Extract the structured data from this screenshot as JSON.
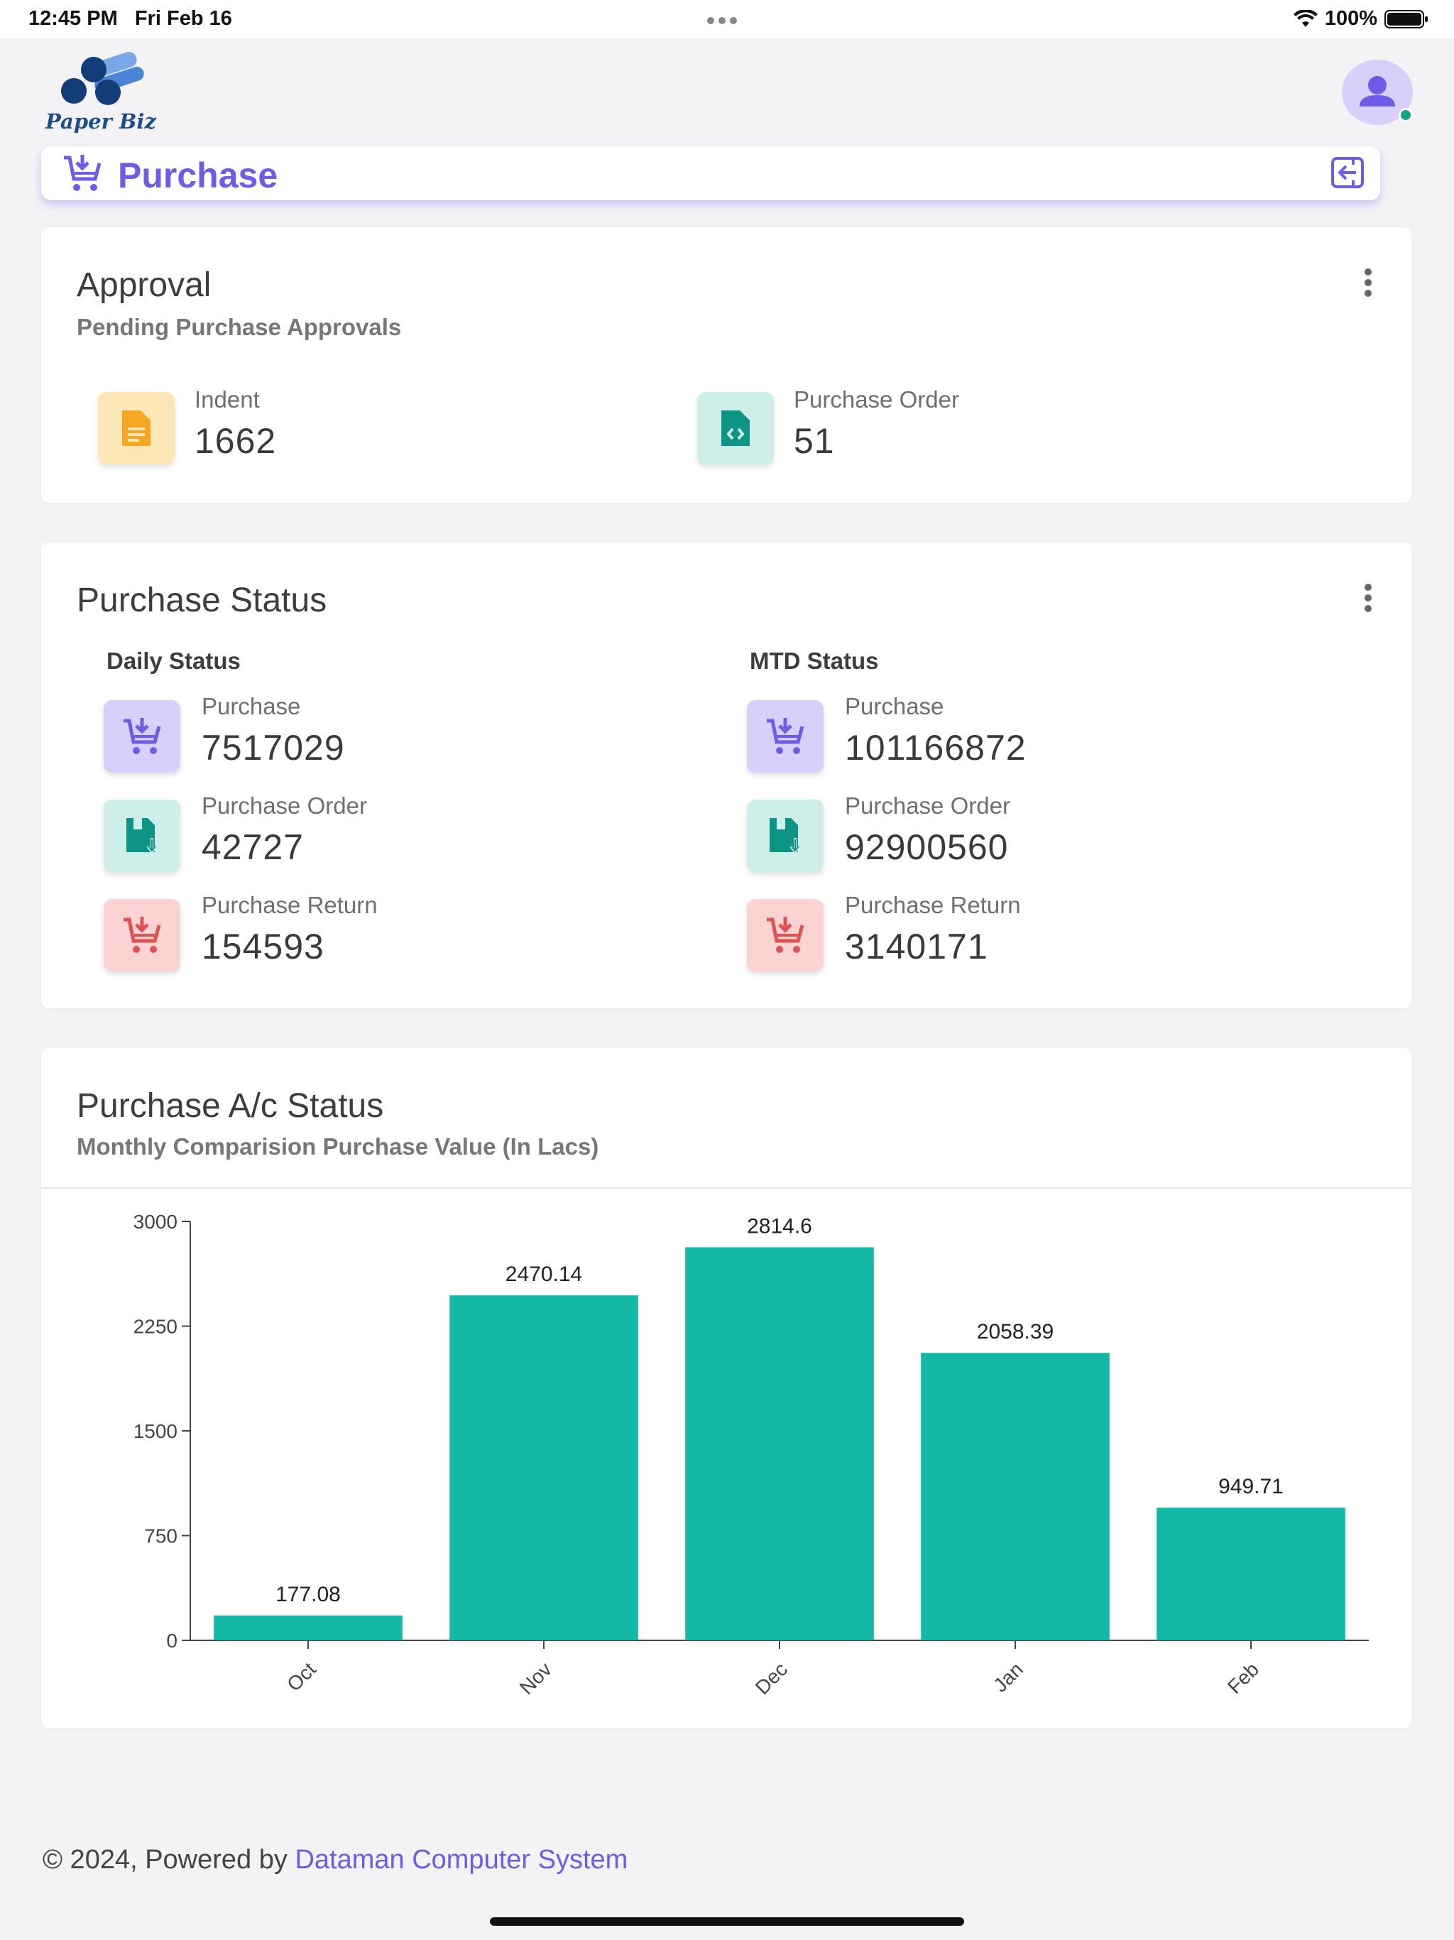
{
  "status_bar": {
    "time": "12:45 PM",
    "date": "Fri Feb 16",
    "battery": "100%"
  },
  "app": {
    "logo_text": "Paper Biz"
  },
  "header": {
    "title": "Purchase"
  },
  "approval": {
    "title": "Approval",
    "subtitle": "Pending Purchase Approvals",
    "items": [
      {
        "label": "Indent",
        "value": "1662",
        "color": "#f5a623",
        "bg": "#fde7b6"
      },
      {
        "label": "Purchase Order",
        "value": "51",
        "color": "#0e9484",
        "bg": "#cdeee9"
      }
    ]
  },
  "purchase_status": {
    "title": "Purchase Status",
    "daily": {
      "label": "Daily Status",
      "items": [
        {
          "label": "Purchase",
          "value": "7517029"
        },
        {
          "label": "Purchase Order",
          "value": "42727"
        },
        {
          "label": "Purchase Return",
          "value": "154593"
        }
      ]
    },
    "mtd": {
      "label": "MTD Status",
      "items": [
        {
          "label": "Purchase",
          "value": "101166872"
        },
        {
          "label": "Purchase Order",
          "value": "92900560"
        },
        {
          "label": "Purchase Return",
          "value": "3140171"
        }
      ]
    }
  },
  "account_status": {
    "title": "Purchase A/c Status",
    "subtitle": "Monthly Comparision Purchase Value (In Lacs)"
  },
  "chart_data": {
    "type": "bar",
    "categories": [
      "Oct",
      "Nov",
      "Dec",
      "Jan",
      "Feb"
    ],
    "values": [
      177.08,
      2470.14,
      2814.6,
      2058.39,
      949.71
    ],
    "value_labels": [
      "177.08",
      "2470.14",
      "2814.6",
      "2058.39",
      "949.71"
    ],
    "ylim": [
      0,
      3000
    ],
    "yticks": [
      0,
      750,
      1500,
      2250,
      3000
    ],
    "color": "#14b8a6"
  },
  "footer": {
    "prefix": "© 2024, Powered by",
    "link": "Dataman Computer System"
  }
}
